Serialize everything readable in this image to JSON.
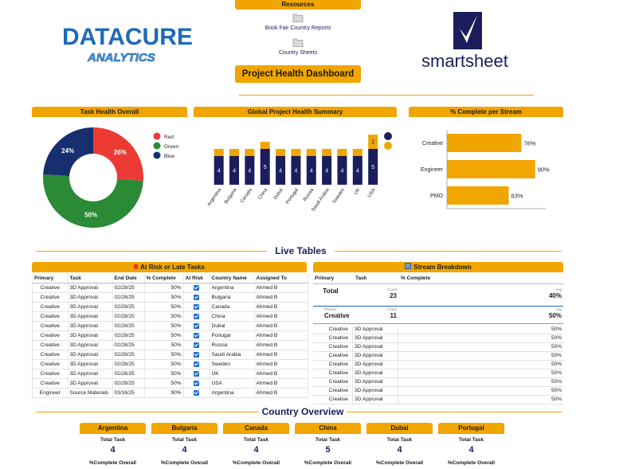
{
  "header": {
    "resources_title": "Resources",
    "links": [
      "Book Fair Country Reports",
      "Country Sheets"
    ],
    "button": "Project Health Dashboard",
    "logo_main": "DATACURE",
    "logo_sub": "ANALYTICS",
    "partner_logo": "smartsheet"
  },
  "chart_data": [
    {
      "type": "pie",
      "title": "Task Health Overall",
      "donut": true,
      "categories": [
        "Red",
        "Green",
        "Blue"
      ],
      "values": [
        26,
        50,
        24
      ],
      "value_labels": [
        "26%",
        "50%",
        "24%"
      ],
      "colors": [
        "#ec3b35",
        "#2a8a36",
        "#172f6e"
      ]
    },
    {
      "type": "stacked_bar",
      "title": "Global Project Health Summary",
      "categories": [
        "Argentina",
        "Bulgaria",
        "Canada",
        "China",
        "Dubai",
        "Portugal",
        "Russia",
        "Saudi Arabia",
        "Sweden",
        "UK",
        "USA"
      ],
      "series": [
        {
          "color": "#1b1d5c",
          "values": [
            4,
            4,
            4,
            5,
            4,
            4,
            4,
            4,
            4,
            4,
            5
          ]
        },
        {
          "color": "#f0a500",
          "values": [
            1,
            1,
            1,
            1,
            1,
            1,
            1,
            1,
            1,
            1,
            2
          ]
        }
      ],
      "ylim": [
        0,
        8
      ]
    },
    {
      "type": "barh",
      "title": "% Complete per Stream",
      "categories": [
        "Creative",
        "Engineer",
        "PMO"
      ],
      "values": [
        76,
        90,
        63
      ],
      "value_labels": [
        "76%",
        "90%",
        "63%"
      ],
      "color": "#f0a500",
      "xlim": [
        0,
        100
      ]
    }
  ],
  "live_tables": {
    "title": "Live Tables",
    "at_risk": {
      "title": "At Risk or Late Tasks",
      "columns": [
        "Primary",
        "Task",
        "End Date",
        "% Complete",
        "At Risk",
        "Country Name",
        "Assigned To"
      ],
      "rows": [
        [
          "Creative",
          "3D Approval",
          "02/28/25",
          "50%",
          true,
          "Argentina",
          "Ahmed B"
        ],
        [
          "Creative",
          "3D Approval",
          "02/28/25",
          "50%",
          true,
          "Bulgaria",
          "Ahmed B"
        ],
        [
          "Creative",
          "3D Approval",
          "02/28/25",
          "50%",
          true,
          "Canada",
          "Ahmed B"
        ],
        [
          "Creative",
          "3D Approval",
          "02/28/25",
          "50%",
          true,
          "China",
          "Ahmed B"
        ],
        [
          "Creative",
          "3D Approval",
          "02/28/25",
          "50%",
          true,
          "Dubai",
          "Ahmed B"
        ],
        [
          "Creative",
          "3D Approval",
          "02/28/25",
          "50%",
          true,
          "Portugal",
          "Ahmed B"
        ],
        [
          "Creative",
          "3D Approval",
          "02/28/25",
          "50%",
          true,
          "Russia",
          "Ahmed B"
        ],
        [
          "Creative",
          "3D Approval",
          "02/28/25",
          "50%",
          true,
          "Saudi Arabia",
          "Ahmed B"
        ],
        [
          "Creative",
          "3D Approval",
          "02/28/25",
          "50%",
          true,
          "Sweden",
          "Ahmed B"
        ],
        [
          "Creative",
          "3D Approval",
          "02/28/25",
          "50%",
          true,
          "UK",
          "Ahmed B"
        ],
        [
          "Creative",
          "3D Approval",
          "02/28/25",
          "50%",
          true,
          "USA",
          "Ahmed B"
        ],
        [
          "Engineer",
          "Source Materials",
          "03/16/25",
          "90%",
          true,
          "Argentina",
          "Ahmed B"
        ]
      ]
    },
    "stream": {
      "title": "Stream Breakdown",
      "columns": [
        "Primary",
        "Task",
        "% Complete"
      ],
      "total": {
        "label": "Total",
        "count_label": "Count",
        "count": 23,
        "avg_label": "Avg",
        "avg": "40%"
      },
      "group": {
        "primary_label": "Primary",
        "name": "Creative",
        "count": 11,
        "avg": "50%"
      },
      "rows": [
        [
          "Creative",
          "3D Approval",
          "50%"
        ],
        [
          "Creative",
          "3D Approval",
          "50%"
        ],
        [
          "Creative",
          "3D Approval",
          "50%"
        ],
        [
          "Creative",
          "3D Approval",
          "50%"
        ],
        [
          "Creative",
          "3D Approval",
          "50%"
        ],
        [
          "Creative",
          "3D Approval",
          "50%"
        ],
        [
          "Creative",
          "3D Approval",
          "50%"
        ],
        [
          "Creative",
          "3D Approval",
          "50%"
        ],
        [
          "Creative",
          "3D Approval",
          "50%"
        ]
      ]
    }
  },
  "country_overview": {
    "title": "Country Overview",
    "total_label": "Total Task",
    "complete_label": "%Complete Overall",
    "cards": [
      {
        "name": "Argentina",
        "total": 4
      },
      {
        "name": "Bulgaria",
        "total": 4
      },
      {
        "name": "Canada",
        "total": 4
      },
      {
        "name": "China",
        "total": 5
      },
      {
        "name": "Dubai",
        "total": 4
      },
      {
        "name": "Portugal",
        "total": 4
      }
    ]
  }
}
